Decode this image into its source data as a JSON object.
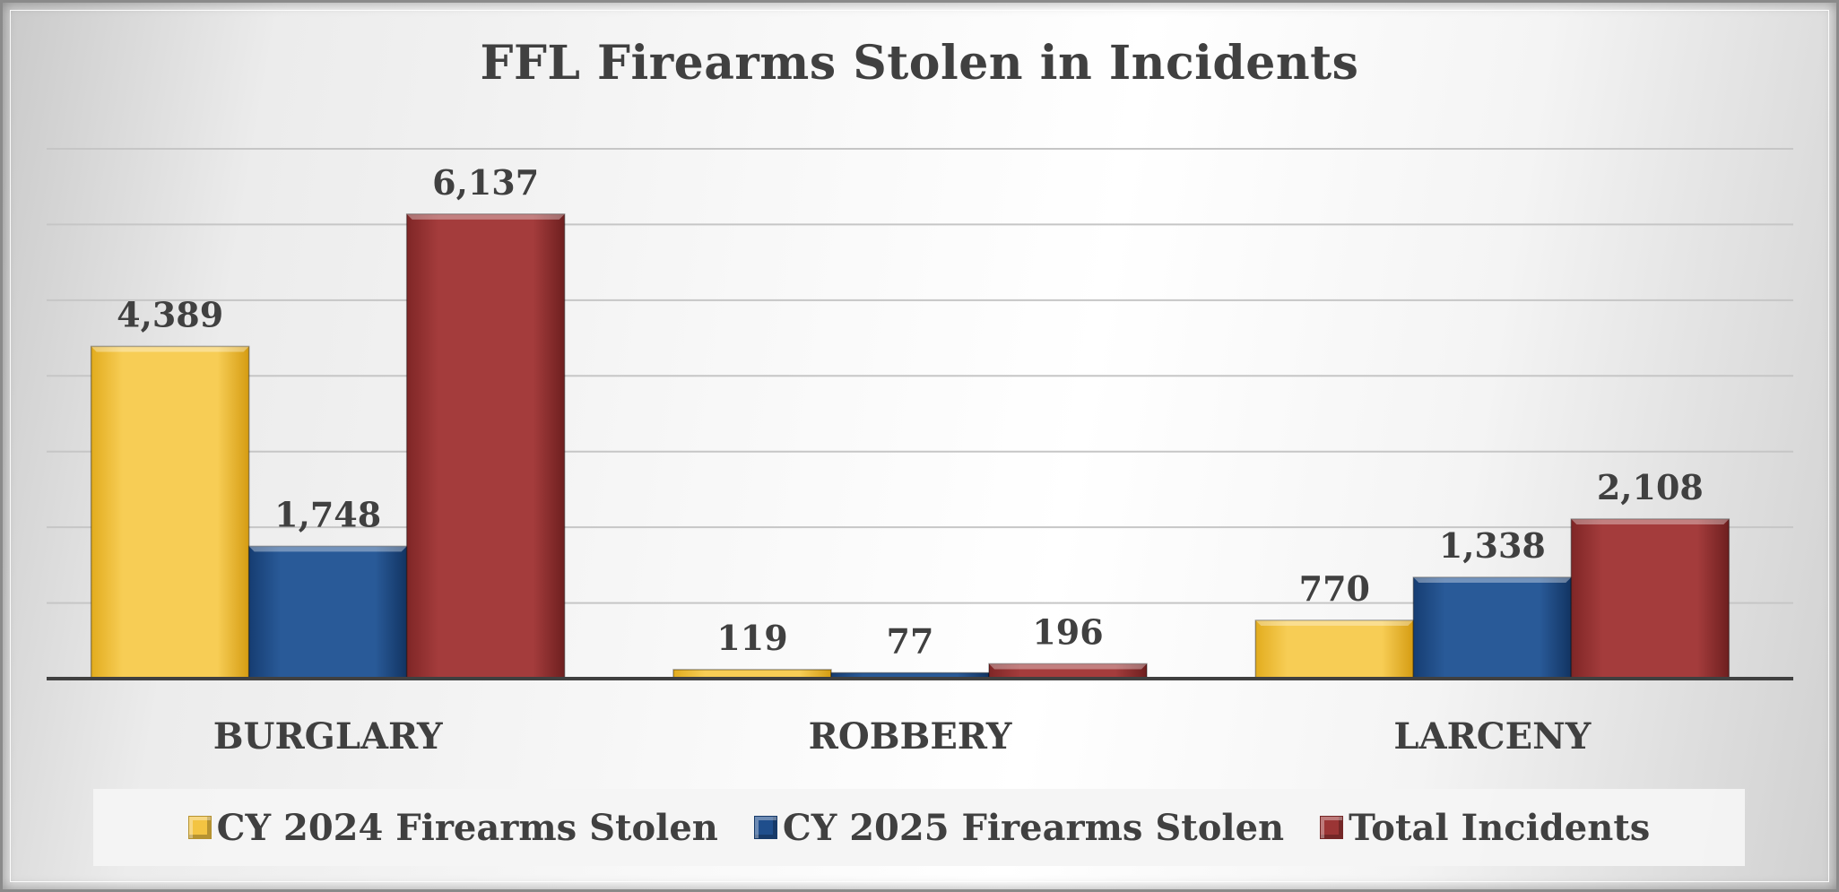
{
  "chart_data": {
    "type": "bar",
    "title": "FFL Firearms Stolen in Incidents",
    "categories": [
      "BURGLARY",
      "ROBBERY",
      "LARCENY"
    ],
    "series": [
      {
        "name": "CY 2024 Firearms Stolen",
        "values": [
          4389,
          119,
          770
        ],
        "labels": [
          "4,389",
          "119",
          "770"
        ],
        "color": "#f3c442"
      },
      {
        "name": "CY 2025 Firearms Stolen",
        "values": [
          1748,
          77,
          1338
        ],
        "labels": [
          "1,748",
          "77",
          "1,338"
        ],
        "color": "#1f4e8c"
      },
      {
        "name": "Total Incidents",
        "values": [
          6137,
          196,
          2108
        ],
        "labels": [
          "6,137",
          "196",
          "2,108"
        ],
        "color": "#9b3535"
      }
    ],
    "ylim": [
      0,
      7000
    ],
    "ystep": 1000,
    "grid": true,
    "y_axis_labels_shown": false,
    "legend_position": "bottom"
  },
  "colors": {
    "text": "#404040",
    "grid": "#c6c6c6",
    "axis": "#404040"
  }
}
